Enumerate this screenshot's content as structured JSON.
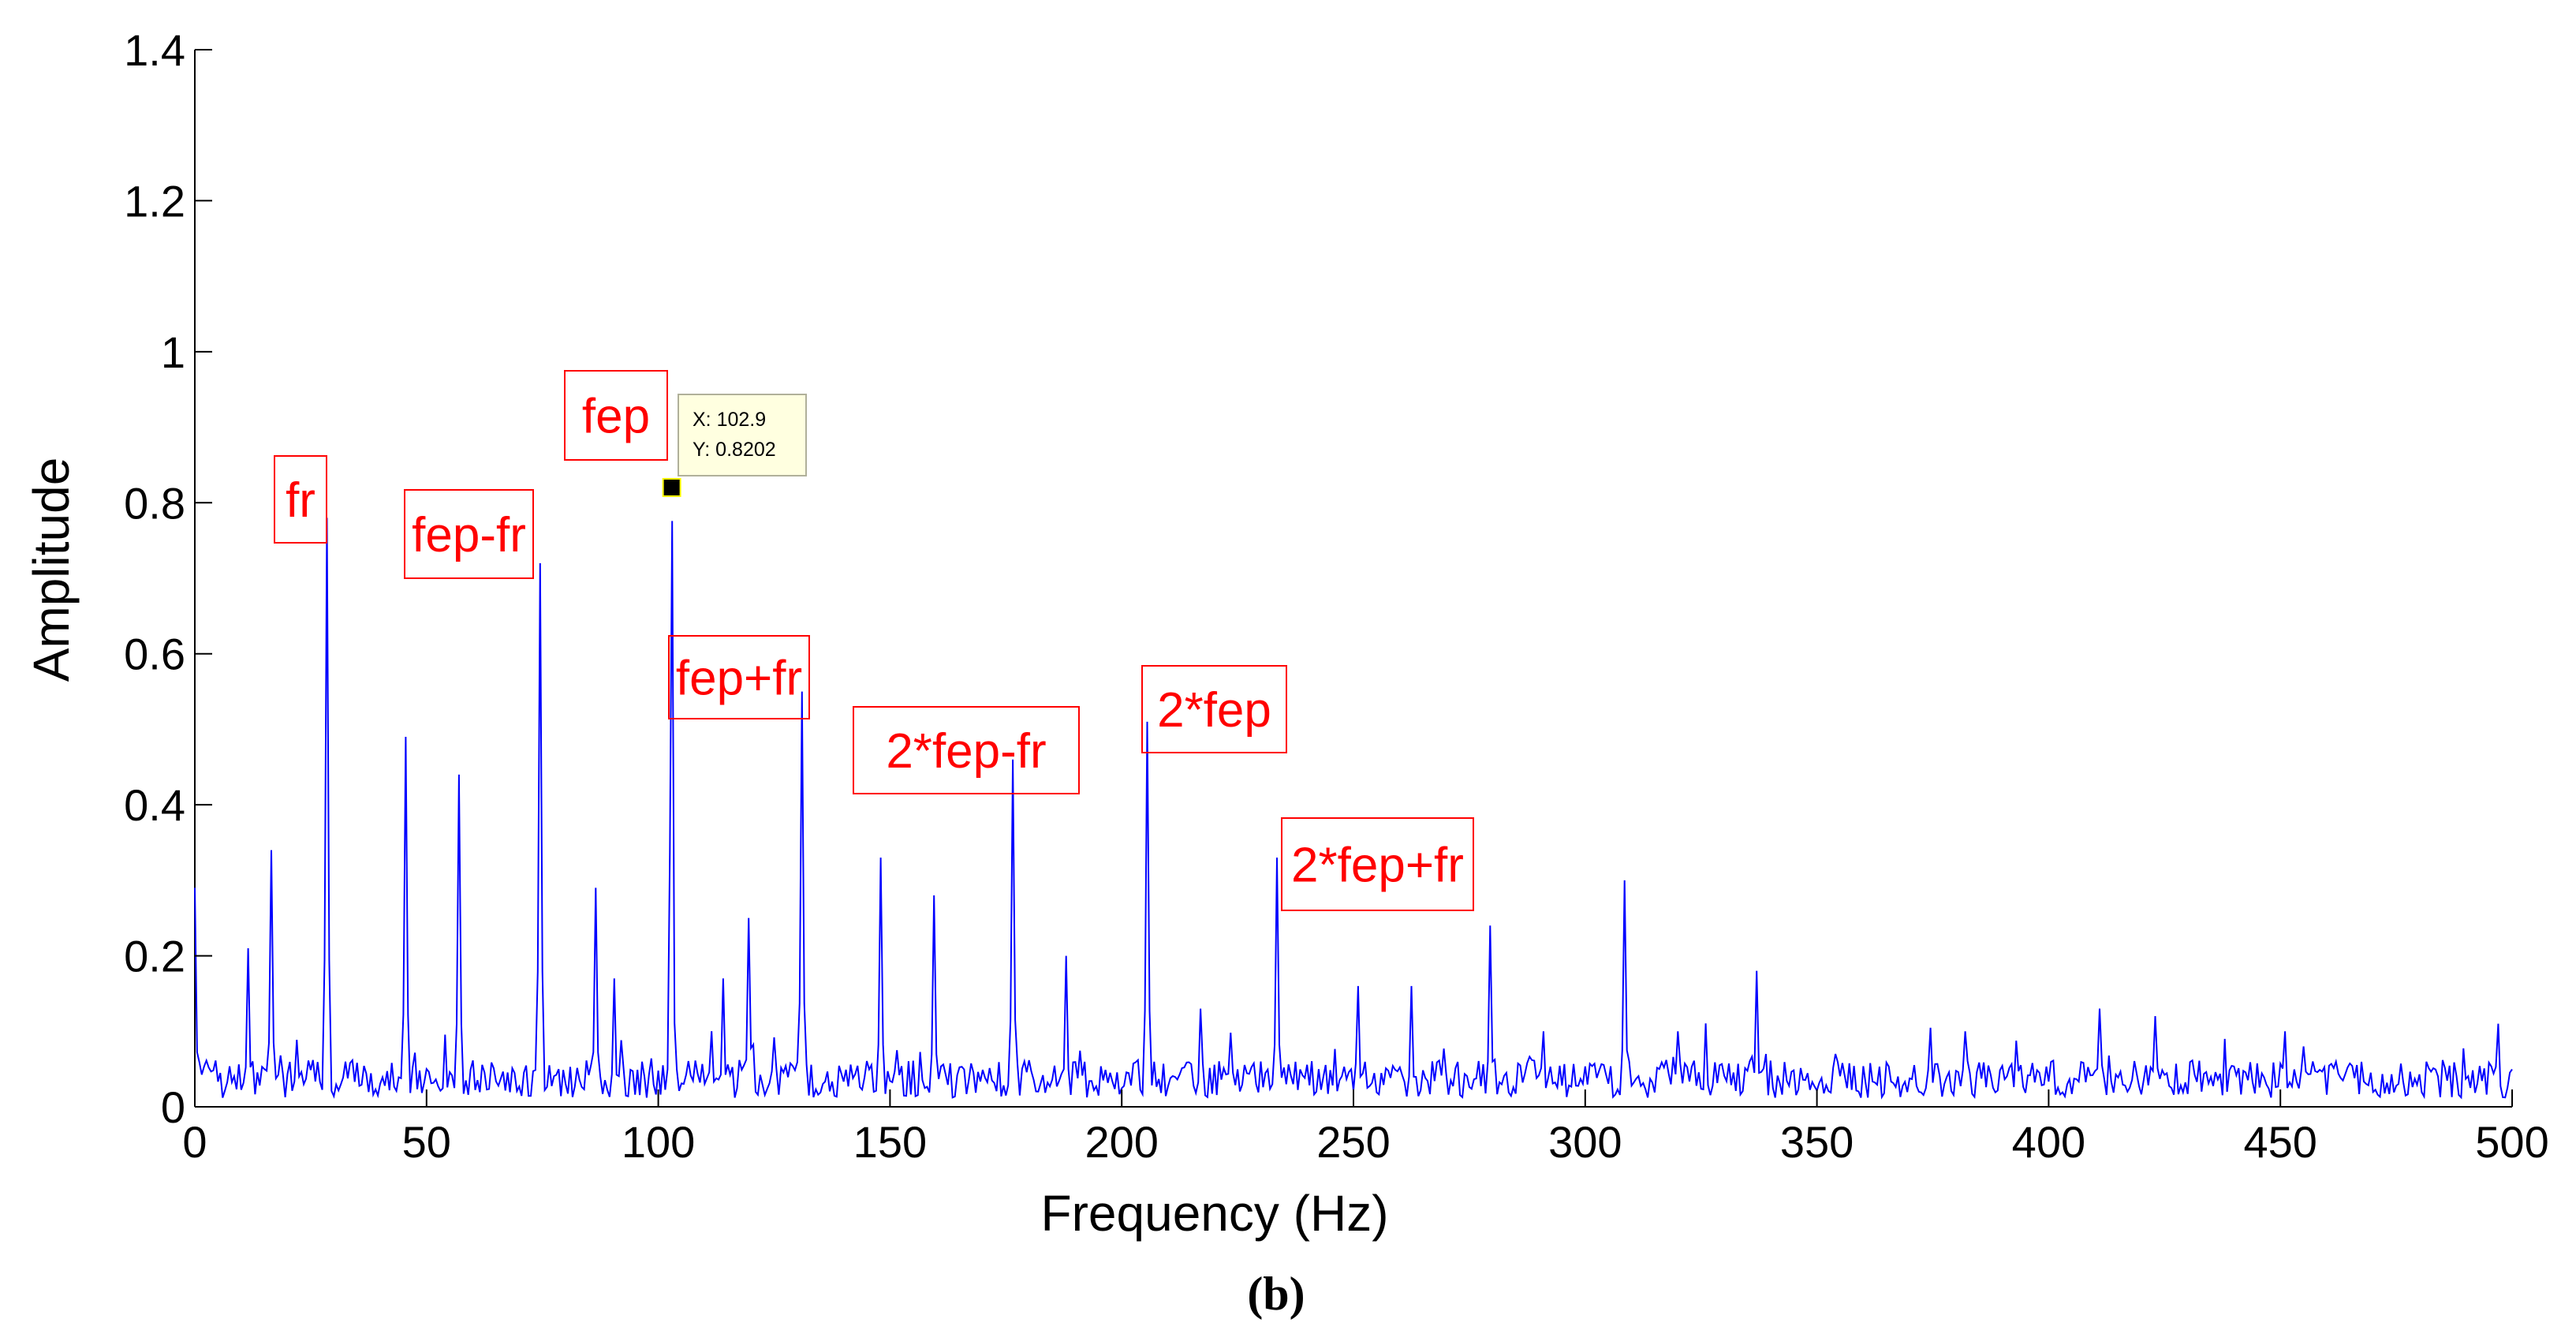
{
  "chart_data": {
    "type": "line",
    "xlabel": "Frequency (Hz)",
    "ylabel": "Amplitude",
    "panel_label": "(b)",
    "xlim": [
      0,
      500
    ],
    "ylim": [
      0,
      1.4
    ],
    "xticks": [
      0,
      50,
      100,
      150,
      200,
      250,
      300,
      350,
      400,
      450,
      500
    ],
    "yticks": [
      0,
      0.2,
      0.4,
      0.6,
      0.8,
      1,
      1.2,
      1.4
    ],
    "ytick_labels": [
      "0",
      "0.2",
      "0.4",
      "0.6",
      "0.8",
      "1",
      "1.2",
      "1.4"
    ],
    "grid": false,
    "line_color": "#0000ff",
    "annotation_color": "#ff0000",
    "series": [
      {
        "peaks": [
          {
            "x": 0,
            "y": 0.29
          },
          {
            "x": 11.5,
            "y": 0.21
          },
          {
            "x": 16.5,
            "y": 0.34
          },
          {
            "x": 28.5,
            "y": 0.78
          },
          {
            "x": 45.5,
            "y": 0.49
          },
          {
            "x": 57,
            "y": 0.44
          },
          {
            "x": 74.5,
            "y": 0.72
          },
          {
            "x": 86.5,
            "y": 0.29
          },
          {
            "x": 90.5,
            "y": 0.17
          },
          {
            "x": 102.9,
            "y": 0.8202
          },
          {
            "x": 114,
            "y": 0.17
          },
          {
            "x": 119.5,
            "y": 0.25
          },
          {
            "x": 131,
            "y": 0.55
          },
          {
            "x": 148,
            "y": 0.33
          },
          {
            "x": 159.5,
            "y": 0.28
          },
          {
            "x": 176.5,
            "y": 0.46
          },
          {
            "x": 188,
            "y": 0.2
          },
          {
            "x": 205.5,
            "y": 0.51
          },
          {
            "x": 217,
            "y": 0.13
          },
          {
            "x": 233.5,
            "y": 0.33
          },
          {
            "x": 251,
            "y": 0.16
          },
          {
            "x": 262.5,
            "y": 0.16
          },
          {
            "x": 279.5,
            "y": 0.24
          },
          {
            "x": 291,
            "y": 0.1
          },
          {
            "x": 308.5,
            "y": 0.3
          },
          {
            "x": 320,
            "y": 0.1
          },
          {
            "x": 337,
            "y": 0.18
          },
          {
            "x": 354,
            "y": 0.07
          },
          {
            "x": 382,
            "y": 0.1
          },
          {
            "x": 411,
            "y": 0.13
          },
          {
            "x": 423,
            "y": 0.12
          },
          {
            "x": 451,
            "y": 0.1
          },
          {
            "x": 497,
            "y": 0.11
          }
        ]
      }
    ],
    "annotations": [
      {
        "text": "fr",
        "x": 28.5
      },
      {
        "text": "fep",
        "x": 102.9
      },
      {
        "text": "fep-fr",
        "x": 74.5
      },
      {
        "text": "fep+fr",
        "x": 131
      },
      {
        "text": "2*fep-fr",
        "x": 176.5
      },
      {
        "text": "2*fep",
        "x": 205.5
      },
      {
        "text": "2*fep+fr",
        "x": 233.5
      }
    ],
    "datatip": {
      "x": 102.9,
      "y": 0.8202,
      "x_text": "X: 102.9",
      "y_text": "Y: 0.8202"
    }
  }
}
